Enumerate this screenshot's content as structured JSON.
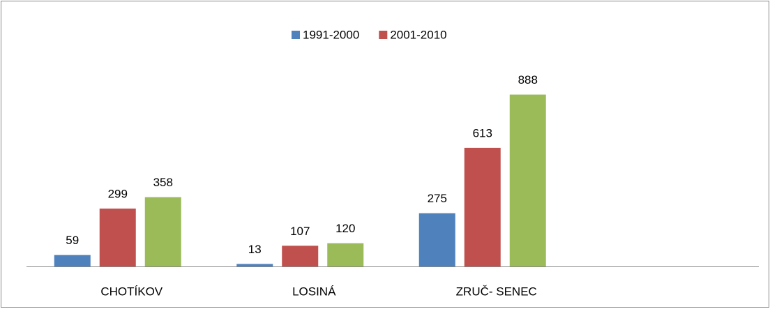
{
  "chart_data": {
    "type": "bar",
    "categories": [
      "CHOTÍKOV",
      "LOSINÁ",
      "ZRUČ- SENEC"
    ],
    "series": [
      {
        "name": "1991-2000",
        "color": "#4f81bd",
        "values": [
          59,
          13,
          275
        ]
      },
      {
        "name": "2001-2010",
        "color": "#c0504d",
        "values": [
          299,
          107,
          613
        ]
      },
      {
        "color": "#9bbb59",
        "values": [
          358,
          120,
          888
        ]
      }
    ],
    "legend": "top"
  }
}
